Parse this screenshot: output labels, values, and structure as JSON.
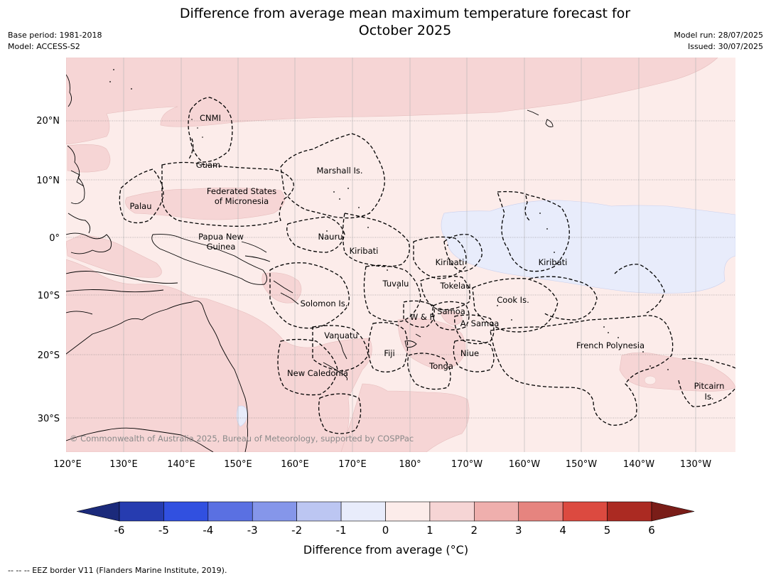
{
  "header": {
    "title_line1": "Difference from average mean maximum temperature forecast for",
    "title_line2": "October 2025",
    "base_period": "Base period: 1981-2018",
    "model": "Model: ACCESS-S2",
    "model_run": "Model run: 28/07/2025",
    "issued": "Issued: 30/07/2025"
  },
  "map": {
    "lat_labels": [
      "20°N",
      "10°N",
      "0°",
      "10°S",
      "20°S",
      "30°S"
    ],
    "lon_labels": [
      "120°E",
      "130°E",
      "140°E",
      "150°E",
      "160°E",
      "170°E",
      "180°",
      "170°W",
      "160°W",
      "150°W",
      "140°W",
      "130°W"
    ],
    "region_labels": [
      "CNMI",
      "Guam",
      "Marshall Is.",
      "Federated States",
      "of Micronesia",
      "Palau",
      "Papua New",
      "Guinea",
      "Nauru",
      "Kiribati",
      "Kiribati",
      "Kiribati",
      "Tuvalu",
      "Tokelau",
      "Cook Is.",
      "Solomon Is.",
      "W & F",
      "Samoa",
      "A. Samoa",
      "Vanuatu",
      "Fiji",
      "Niue",
      "Tonga",
      "French Polynesia",
      "New Caledonia",
      "Pitcairn",
      "Is."
    ],
    "copyright": "© Commonwealth of Australia 2025, Bureau of Meteorology, supported by COSPPac"
  },
  "colorbar": {
    "label": "Difference from average (°C)",
    "ticks": [
      "-6",
      "-5",
      "-4",
      "-3",
      "-2",
      "-1",
      "0",
      "1",
      "2",
      "3",
      "4",
      "5",
      "6"
    ],
    "colors": [
      "#1b2a7b",
      "#263cb0",
      "#3150e0",
      "#5a70e2",
      "#8596ea",
      "#bcc6f2",
      "#e8ecfb",
      "#fcecea",
      "#f6d5d5",
      "#efafad",
      "#e6847f",
      "#dc4a40",
      "#ab2a22",
      "#7a1d18"
    ]
  },
  "map_colors": {
    "band_0_1": "#fcecea",
    "band_1_2": "#f6d5d5",
    "band_neg1_0": "#e8ecfb"
  },
  "footer": {
    "legend_text": "-- -- -- EEZ border V11 (Flanders Marine Institute, 2019)."
  }
}
